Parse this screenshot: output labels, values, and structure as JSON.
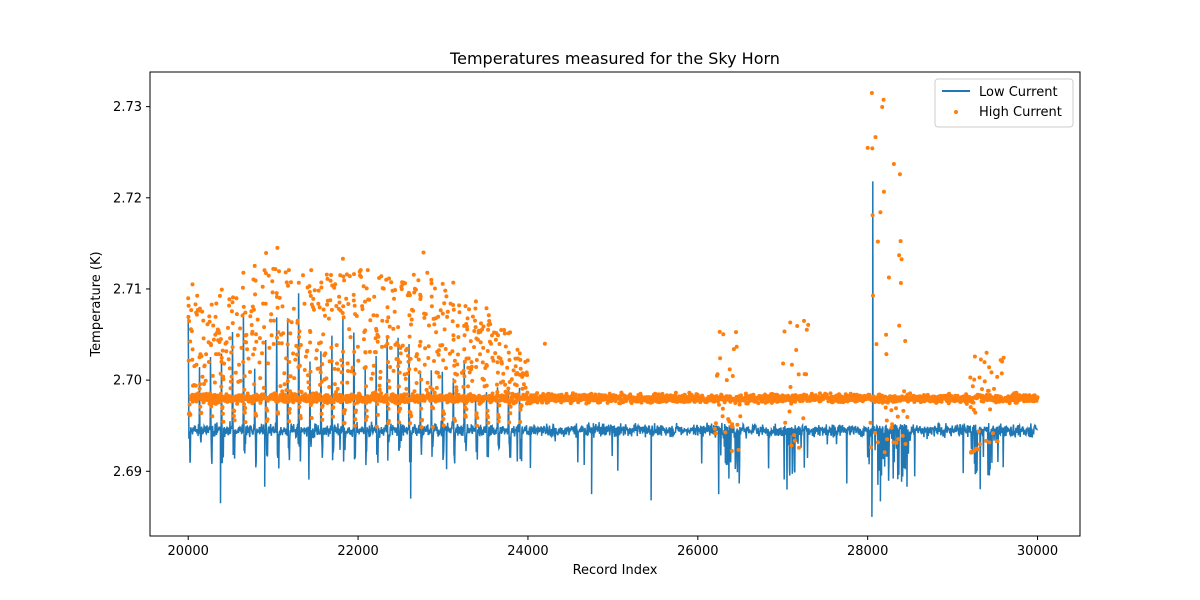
{
  "chart_data": {
    "type": "line+scatter",
    "title": "Temperatures measured for the Sky Horn",
    "xlabel": "Record Index",
    "ylabel": "Temperature (K)",
    "xlim": [
      19550,
      30500
    ],
    "ylim": [
      2.6829,
      2.7338
    ],
    "xticks": [
      20000,
      22000,
      24000,
      26000,
      28000,
      30000
    ],
    "yticks": [
      2.69,
      2.7,
      2.71,
      2.72,
      2.73
    ],
    "xtick_labels": [
      "20000",
      "22000",
      "24000",
      "26000",
      "28000",
      "30000"
    ],
    "ytick_labels": [
      "2.69",
      "2.70",
      "2.71",
      "2.72",
      "2.73"
    ],
    "legend": {
      "location": "top-right",
      "entries": [
        "Low Current",
        "High Current"
      ]
    },
    "series": [
      {
        "name": "Low Current",
        "kind": "line",
        "color": "#1f77b4",
        "baseline": 2.6945,
        "noise": 0.0012,
        "notable_points": [
          {
            "x": 20380,
            "y": 2.6865
          },
          {
            "x": 20900,
            "y": 2.6883
          },
          {
            "x": 22620,
            "y": 2.687
          },
          {
            "x": 24750,
            "y": 2.6875
          },
          {
            "x": 25450,
            "y": 2.6868
          },
          {
            "x": 28060,
            "y": 2.7218
          },
          {
            "x": 28050,
            "y": 2.685
          },
          {
            "x": 28150,
            "y": 2.6867
          }
        ]
      },
      {
        "name": "High Current",
        "kind": "scatter",
        "color": "#ff7f0e",
        "baseline": 2.698,
        "noise": 0.0008,
        "notable_points": [
          {
            "x": 28050,
            "y": 2.7315
          },
          {
            "x": 28120,
            "y": 2.7152
          },
          {
            "x": 28370,
            "y": 2.7137
          },
          {
            "x": 21050,
            "y": 2.7145
          },
          {
            "x": 22770,
            "y": 2.714
          },
          {
            "x": 20050,
            "y": 2.7105
          },
          {
            "x": 24200,
            "y": 2.704
          },
          {
            "x": 27250,
            "y": 2.7065
          },
          {
            "x": 29400,
            "y": 2.703
          }
        ]
      }
    ],
    "oscillation_envelope": [
      {
        "x": 20050,
        "high_current_peak": 2.7105,
        "low_current_peak": 2.7075
      },
      {
        "x": 20500,
        "high_current_peak": 2.7115,
        "low_current_peak": 2.7075
      },
      {
        "x": 21000,
        "high_current_peak": 2.7145,
        "low_current_peak": 2.71
      },
      {
        "x": 21500,
        "high_current_peak": 2.714,
        "low_current_peak": 2.71
      },
      {
        "x": 22000,
        "high_current_peak": 2.714,
        "low_current_peak": 2.7095
      },
      {
        "x": 22500,
        "high_current_peak": 2.713,
        "low_current_peak": 2.708
      },
      {
        "x": 22750,
        "high_current_peak": 2.714,
        "low_current_peak": 2.706
      },
      {
        "x": 23000,
        "high_current_peak": 2.7115,
        "low_current_peak": 2.704
      },
      {
        "x": 23400,
        "high_current_peak": 2.7095,
        "low_current_peak": 2.702
      },
      {
        "x": 23800,
        "high_current_peak": 2.706,
        "low_current_peak": 2.7
      },
      {
        "x": 24000,
        "high_current_peak": 2.703,
        "low_current_peak": 2.699
      }
    ],
    "disturbance_regions": [
      {
        "x_start": 26200,
        "x_end": 26500,
        "high_current_max": 2.7058
      },
      {
        "x_start": 27000,
        "x_end": 27300,
        "high_current_max": 2.7065
      },
      {
        "x_start": 28000,
        "x_end": 28500,
        "high_current_max": 2.7315
      },
      {
        "x_start": 29200,
        "x_end": 29600,
        "high_current_max": 2.703
      }
    ]
  }
}
